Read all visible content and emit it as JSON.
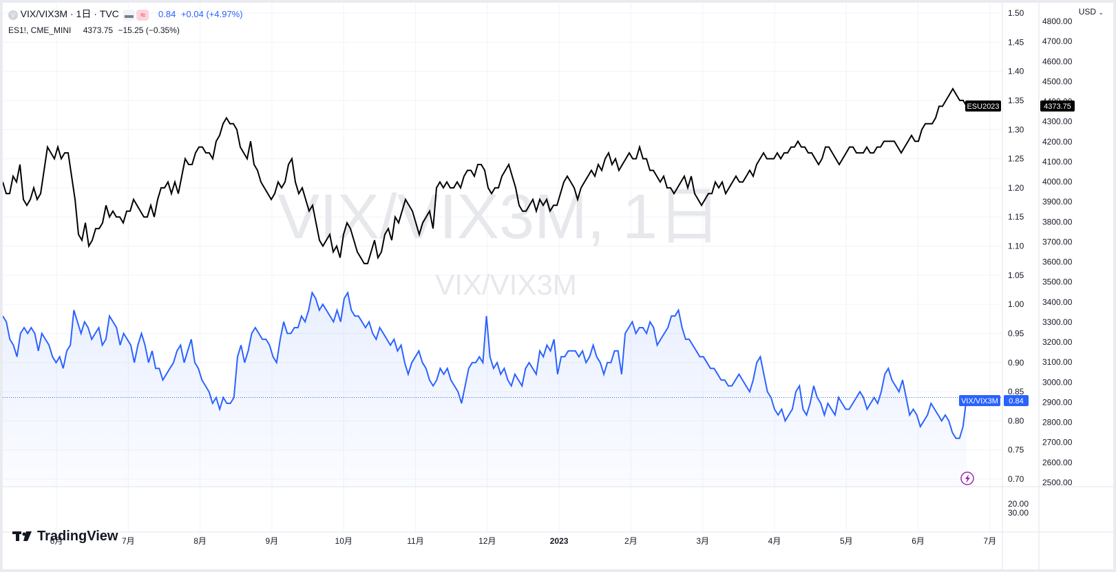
{
  "header": {
    "symbol": "VIX/VIX3M · 1日 · TVC",
    "last": "0.84",
    "change": "+0.04 (+4.97%)",
    "compare_symbol": "ES1!, CME_MINI",
    "compare_last": "4373.75",
    "compare_change": "−15.25 (−0.35%)"
  },
  "watermark": {
    "main": "VIX/VIX3M, 1日",
    "sub": "VIX/VIX3M"
  },
  "brand": "TradingView",
  "currency_button": "USD",
  "colors": {
    "main_series": "#2962ff",
    "compare_series": "#000000",
    "grid": "#f0f3fa",
    "alert_icon": "#9c27b0"
  },
  "chart_data": {
    "type": "line",
    "x_ticks": [
      "6月",
      "7月",
      "8月",
      "9月",
      "10月",
      "11月",
      "12月",
      "2023",
      "2月",
      "3月",
      "4月",
      "5月",
      "6月",
      "7月"
    ],
    "axes": {
      "left_scale": {
        "ticks": [
          "1.50",
          "1.45",
          "1.40",
          "1.35",
          "1.30",
          "1.25",
          "1.20",
          "1.15",
          "1.10",
          "1.05",
          "1.00",
          "0.95",
          "0.90",
          "0.85",
          "0.80",
          "0.75",
          "0.70"
        ],
        "range": [
          0.68,
          1.51
        ]
      },
      "right_scale": {
        "ticks": [
          "4800.00",
          "4700.00",
          "4600.00",
          "4500.00",
          "4400.00",
          "4300.00",
          "4200.00",
          "4100.00",
          "4000.00",
          "3900.00",
          "3800.00",
          "3700.00",
          "3600.00",
          "3500.00",
          "3400.00",
          "3300.00",
          "3200.00",
          "3100.00",
          "3000.00",
          "2900.00",
          "2800.00",
          "2700.00",
          "2600.00",
          "2500.00"
        ]
      },
      "lower_pane_ticks": [
        "20.00",
        "30.00"
      ]
    },
    "series": [
      {
        "name": "VIX/VIX3M",
        "color": "#2962ff",
        "last_label": "0.84",
        "values": [
          0.98,
          0.97,
          0.94,
          0.93,
          0.91,
          0.95,
          0.96,
          0.95,
          0.96,
          0.95,
          0.92,
          0.95,
          0.94,
          0.93,
          0.91,
          0.9,
          0.91,
          0.89,
          0.92,
          0.93,
          0.99,
          0.97,
          0.95,
          0.97,
          0.96,
          0.94,
          0.95,
          0.96,
          0.93,
          0.94,
          0.98,
          0.97,
          0.96,
          0.93,
          0.95,
          0.94,
          0.93,
          0.9,
          0.93,
          0.95,
          0.93,
          0.9,
          0.92,
          0.89,
          0.89,
          0.87,
          0.88,
          0.89,
          0.9,
          0.92,
          0.93,
          0.9,
          0.92,
          0.94,
          0.9,
          0.89,
          0.87,
          0.86,
          0.85,
          0.83,
          0.84,
          0.82,
          0.84,
          0.83,
          0.83,
          0.84,
          0.91,
          0.93,
          0.9,
          0.92,
          0.95,
          0.96,
          0.95,
          0.94,
          0.94,
          0.93,
          0.91,
          0.9,
          0.94,
          0.97,
          0.95,
          0.95,
          0.96,
          0.96,
          0.98,
          0.97,
          0.99,
          1.02,
          1.01,
          0.99,
          1.0,
          0.99,
          0.98,
          0.97,
          0.99,
          0.97,
          1.01,
          1.02,
          0.99,
          0.98,
          0.98,
          0.97,
          0.96,
          0.97,
          0.95,
          0.94,
          0.96,
          0.95,
          0.94,
          0.93,
          0.94,
          0.92,
          0.93,
          0.9,
          0.88,
          0.9,
          0.91,
          0.92,
          0.9,
          0.89,
          0.87,
          0.86,
          0.87,
          0.89,
          0.88,
          0.89,
          0.87,
          0.86,
          0.85,
          0.83,
          0.86,
          0.89,
          0.9,
          0.9,
          0.91,
          0.9,
          0.98,
          0.91,
          0.89,
          0.9,
          0.88,
          0.89,
          0.87,
          0.86,
          0.88,
          0.87,
          0.86,
          0.89,
          0.9,
          0.89,
          0.88,
          0.92,
          0.91,
          0.93,
          0.92,
          0.94,
          0.88,
          0.91,
          0.91,
          0.92,
          0.92,
          0.92,
          0.91,
          0.92,
          0.9,
          0.91,
          0.93,
          0.91,
          0.9,
          0.88,
          0.9,
          0.9,
          0.92,
          0.92,
          0.88,
          0.95,
          0.96,
          0.97,
          0.95,
          0.96,
          0.96,
          0.95,
          0.97,
          0.96,
          0.93,
          0.94,
          0.95,
          0.96,
          0.98,
          0.98,
          0.99,
          0.96,
          0.94,
          0.94,
          0.93,
          0.92,
          0.91,
          0.91,
          0.9,
          0.89,
          0.89,
          0.88,
          0.87,
          0.87,
          0.86,
          0.86,
          0.87,
          0.88,
          0.87,
          0.86,
          0.85,
          0.87,
          0.9,
          0.91,
          0.88,
          0.85,
          0.84,
          0.82,
          0.81,
          0.82,
          0.8,
          0.81,
          0.82,
          0.85,
          0.86,
          0.82,
          0.81,
          0.83,
          0.86,
          0.84,
          0.83,
          0.81,
          0.83,
          0.82,
          0.81,
          0.84,
          0.83,
          0.82,
          0.82,
          0.83,
          0.84,
          0.85,
          0.84,
          0.82,
          0.83,
          0.84,
          0.83,
          0.85,
          0.88,
          0.89,
          0.87,
          0.86,
          0.85,
          0.87,
          0.84,
          0.81,
          0.82,
          0.81,
          0.79,
          0.8,
          0.81,
          0.83,
          0.82,
          0.81,
          0.8,
          0.81,
          0.8,
          0.78,
          0.77,
          0.77,
          0.79,
          0.84
        ]
      },
      {
        "name": "ESU2023",
        "color": "#000000",
        "last_label": "4373.75",
        "values": [
          1.21,
          1.19,
          1.19,
          1.22,
          1.21,
          1.24,
          1.18,
          1.17,
          1.18,
          1.2,
          1.18,
          1.19,
          1.23,
          1.27,
          1.26,
          1.25,
          1.27,
          1.25,
          1.26,
          1.26,
          1.22,
          1.18,
          1.12,
          1.11,
          1.14,
          1.1,
          1.11,
          1.13,
          1.13,
          1.14,
          1.17,
          1.15,
          1.16,
          1.15,
          1.15,
          1.14,
          1.16,
          1.16,
          1.18,
          1.17,
          1.16,
          1.15,
          1.15,
          1.17,
          1.15,
          1.18,
          1.2,
          1.2,
          1.21,
          1.19,
          1.21,
          1.19,
          1.22,
          1.25,
          1.24,
          1.24,
          1.26,
          1.27,
          1.27,
          1.26,
          1.26,
          1.25,
          1.28,
          1.29,
          1.31,
          1.32,
          1.31,
          1.31,
          1.3,
          1.27,
          1.26,
          1.25,
          1.28,
          1.24,
          1.23,
          1.21,
          1.2,
          1.19,
          1.18,
          1.19,
          1.21,
          1.2,
          1.21,
          1.24,
          1.25,
          1.21,
          1.19,
          1.2,
          1.18,
          1.16,
          1.17,
          1.14,
          1.11,
          1.1,
          1.11,
          1.12,
          1.09,
          1.1,
          1.08,
          1.12,
          1.14,
          1.13,
          1.11,
          1.09,
          1.08,
          1.07,
          1.07,
          1.09,
          1.11,
          1.08,
          1.09,
          1.12,
          1.13,
          1.11,
          1.15,
          1.14,
          1.16,
          1.18,
          1.17,
          1.16,
          1.14,
          1.12,
          1.14,
          1.15,
          1.16,
          1.13,
          1.2,
          1.21,
          1.2,
          1.21,
          1.2,
          1.2,
          1.21,
          1.2,
          1.22,
          1.23,
          1.23,
          1.22,
          1.24,
          1.24,
          1.23,
          1.2,
          1.19,
          1.2,
          1.2,
          1.22,
          1.23,
          1.24,
          1.22,
          1.2,
          1.17,
          1.16,
          1.16,
          1.17,
          1.18,
          1.16,
          1.18,
          1.17,
          1.18,
          1.16,
          1.17,
          1.17,
          1.19,
          1.21,
          1.22,
          1.21,
          1.2,
          1.18,
          1.2,
          1.21,
          1.22,
          1.23,
          1.22,
          1.24,
          1.23,
          1.25,
          1.26,
          1.24,
          1.25,
          1.23,
          1.24,
          1.25,
          1.26,
          1.25,
          1.25,
          1.27,
          1.25,
          1.25,
          1.23,
          1.23,
          1.22,
          1.21,
          1.22,
          1.2,
          1.2,
          1.19,
          1.2,
          1.21,
          1.22,
          1.2,
          1.22,
          1.19,
          1.18,
          1.17,
          1.18,
          1.19,
          1.19,
          1.21,
          1.2,
          1.21,
          1.19,
          1.2,
          1.21,
          1.22,
          1.21,
          1.21,
          1.22,
          1.23,
          1.22,
          1.24,
          1.25,
          1.26,
          1.25,
          1.25,
          1.25,
          1.26,
          1.25,
          1.26,
          1.26,
          1.27,
          1.27,
          1.28,
          1.27,
          1.27,
          1.26,
          1.26,
          1.25,
          1.24,
          1.25,
          1.27,
          1.27,
          1.26,
          1.25,
          1.24,
          1.25,
          1.26,
          1.27,
          1.27,
          1.26,
          1.26,
          1.26,
          1.27,
          1.26,
          1.26,
          1.27,
          1.27,
          1.28,
          1.28,
          1.28,
          1.28,
          1.27,
          1.26,
          1.27,
          1.28,
          1.29,
          1.28,
          1.28,
          1.3,
          1.31,
          1.31,
          1.31,
          1.32,
          1.34,
          1.34,
          1.35,
          1.36,
          1.37,
          1.36,
          1.35,
          1.35,
          1.34
        ]
      }
    ],
    "grid": true
  }
}
